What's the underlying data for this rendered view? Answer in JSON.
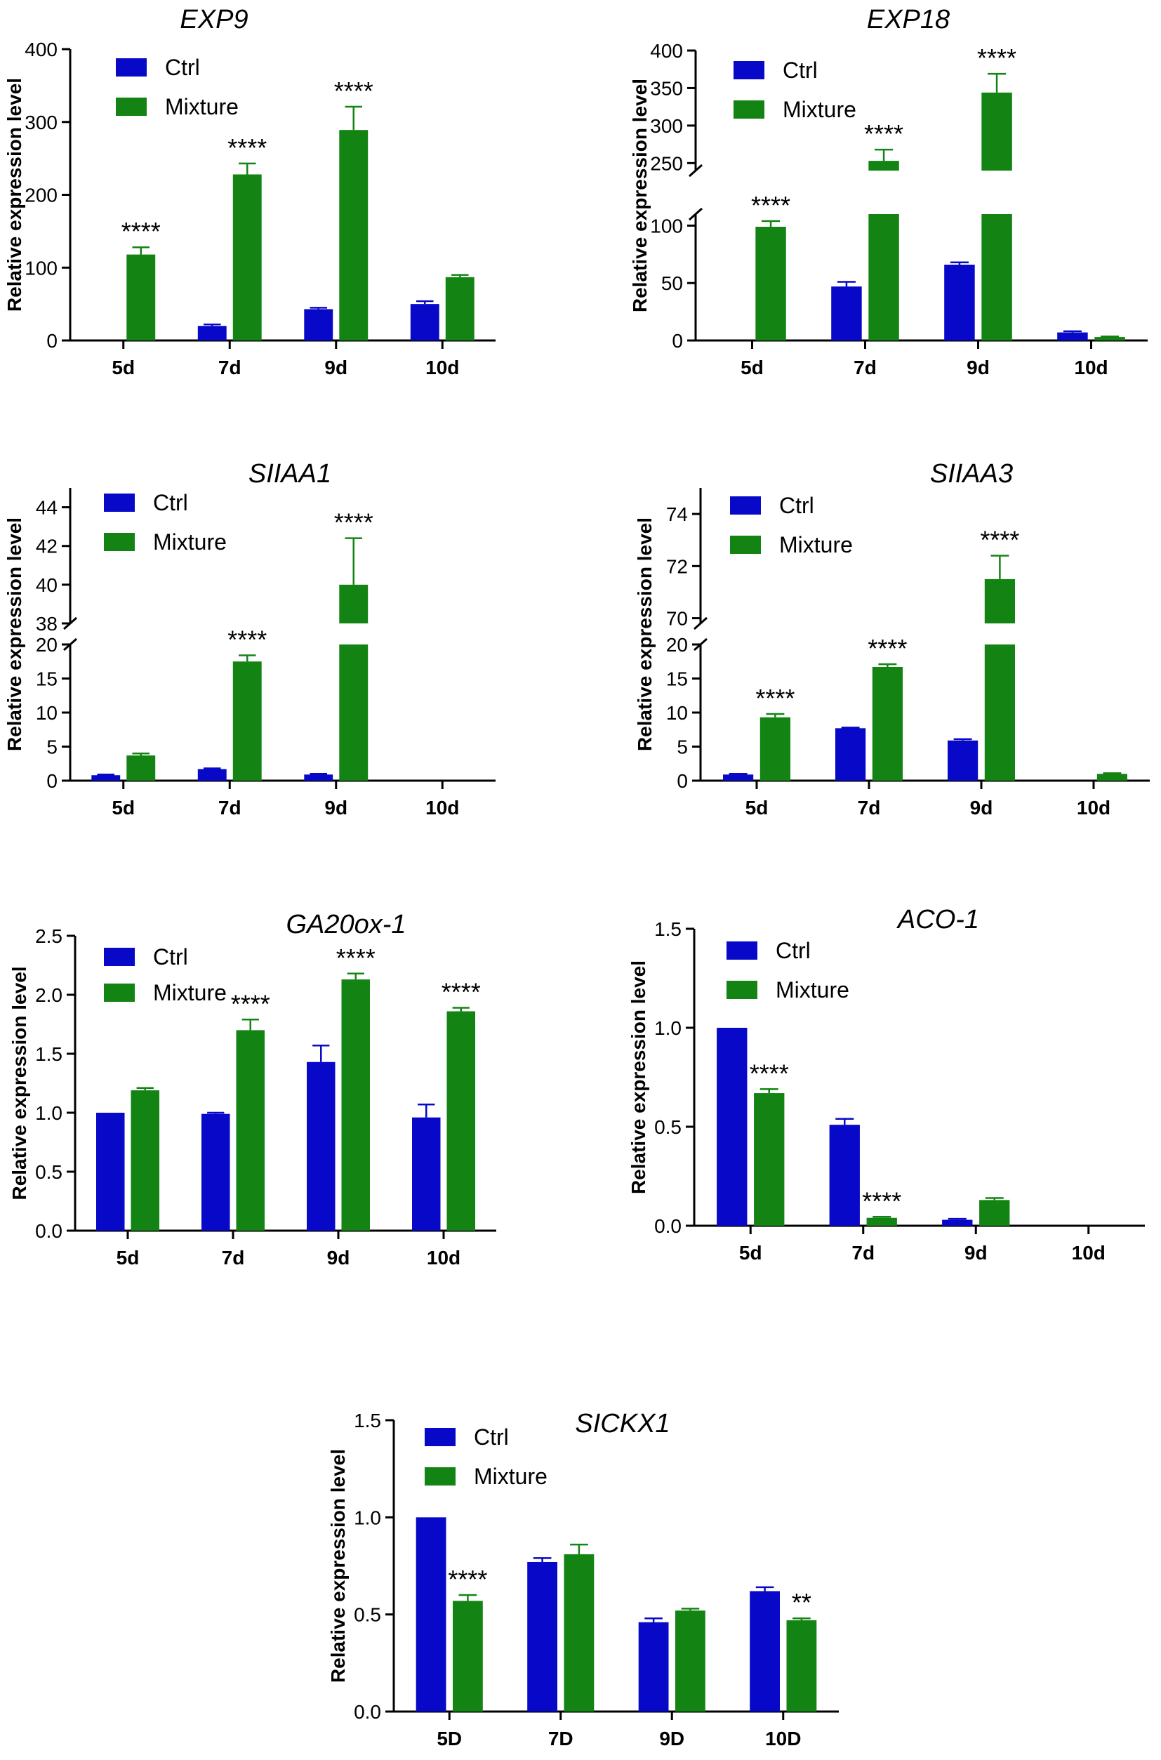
{
  "colors": {
    "ctrl": "#0808c8",
    "mixture": "#138413",
    "axis": "#000000"
  },
  "chart_data": [
    {
      "type": "bar",
      "title": "EXP9",
      "ylabel": "Relative expression level",
      "xlabel": "",
      "categories": [
        "5d",
        "7d",
        "9d",
        "10d"
      ],
      "ylim": [
        0,
        400
      ],
      "yticks": [
        "0",
        "100",
        "200",
        "300",
        "400"
      ],
      "yticks_values": [
        0,
        100,
        200,
        300,
        400
      ],
      "series": [
        {
          "name": "Ctrl",
          "values": [
            0,
            20,
            43,
            50
          ],
          "errors": [
            0,
            2,
            2,
            4
          ]
        },
        {
          "name": "Mixture",
          "values": [
            118,
            228,
            289,
            87
          ],
          "errors": [
            10,
            15,
            32,
            3
          ]
        }
      ],
      "significance": [
        "****",
        "****",
        "****",
        ""
      ]
    },
    {
      "type": "bar",
      "title": "EXP18",
      "ylabel": "Relative expression level",
      "xlabel": "",
      "categories": [
        "5d",
        "7d",
        "9d",
        "10d"
      ],
      "ylim": [
        0,
        400
      ],
      "axis_break": {
        "lower": [
          0,
          110
        ],
        "upper": [
          240,
          400
        ]
      },
      "yticks": [
        "0",
        "50",
        "100",
        "250",
        "300",
        "350",
        "400"
      ],
      "yticks_values": [
        0,
        50,
        100,
        250,
        300,
        350,
        400
      ],
      "series": [
        {
          "name": "Ctrl",
          "values": [
            0,
            47,
            66,
            7
          ],
          "errors": [
            0,
            4,
            2,
            1
          ]
        },
        {
          "name": "Mixture",
          "values": [
            99,
            253,
            344,
            3
          ],
          "errors": [
            5,
            15,
            25,
            0.5
          ]
        }
      ],
      "significance": [
        "****",
        "****",
        "****",
        ""
      ]
    },
    {
      "type": "bar",
      "title": "SIIAA1",
      "ylabel": "Relative expression level",
      "xlabel": "",
      "categories": [
        "5d",
        "7d",
        "9d",
        "10d"
      ],
      "ylim": [
        0,
        45
      ],
      "axis_break": {
        "lower": [
          0,
          20
        ],
        "upper": [
          38,
          45
        ]
      },
      "yticks": [
        "0",
        "5",
        "10",
        "15",
        "20",
        "38",
        "40",
        "42",
        "44"
      ],
      "yticks_values": [
        0,
        5,
        10,
        15,
        20,
        38,
        40,
        42,
        44
      ],
      "series": [
        {
          "name": "Ctrl",
          "values": [
            0.8,
            1.7,
            0.9,
            0
          ],
          "errors": [
            0.1,
            0.1,
            0.1,
            0
          ]
        },
        {
          "name": "Mixture",
          "values": [
            3.7,
            17.5,
            40.0,
            0
          ],
          "errors": [
            0.3,
            0.9,
            2.4,
            0
          ]
        }
      ],
      "significance": [
        "",
        "****",
        "****",
        ""
      ]
    },
    {
      "type": "bar",
      "title": "SIIAA3",
      "ylabel": "Relative expression level",
      "xlabel": "",
      "categories": [
        "5d",
        "7d",
        "9d",
        "10d"
      ],
      "ylim": [
        0,
        75
      ],
      "axis_break": {
        "lower": [
          0,
          20
        ],
        "upper": [
          69.8,
          75
        ]
      },
      "yticks": [
        "0",
        "5",
        "10",
        "15",
        "20",
        "70",
        "72",
        "74"
      ],
      "yticks_values": [
        0,
        5,
        10,
        15,
        20,
        70,
        72,
        74
      ],
      "series": [
        {
          "name": "Ctrl",
          "values": [
            0.9,
            7.7,
            5.9,
            0
          ],
          "errors": [
            0.1,
            0.1,
            0.2,
            0
          ]
        },
        {
          "name": "Mixture",
          "values": [
            9.3,
            16.7,
            71.5,
            1.0
          ],
          "errors": [
            0.5,
            0.4,
            0.9,
            0.1
          ]
        }
      ],
      "significance": [
        "****",
        "****",
        "****",
        ""
      ]
    },
    {
      "type": "bar",
      "title": "GA20ox-1",
      "ylabel": "Relative expression level",
      "xlabel": "",
      "categories": [
        "5d",
        "7d",
        "9d",
        "10d"
      ],
      "ylim": [
        0,
        2.5
      ],
      "yticks": [
        "0.0",
        "0.5",
        "1.0",
        "1.5",
        "2.0",
        "2.5"
      ],
      "yticks_values": [
        0,
        0.5,
        1.0,
        1.5,
        2.0,
        2.5
      ],
      "series": [
        {
          "name": "Ctrl",
          "values": [
            1.0,
            0.99,
            1.43,
            0.96
          ],
          "errors": [
            0,
            0.01,
            0.14,
            0.11
          ]
        },
        {
          "name": "Mixture",
          "values": [
            1.19,
            1.7,
            2.13,
            1.86
          ],
          "errors": [
            0.02,
            0.09,
            0.05,
            0.03
          ]
        }
      ],
      "significance": [
        "",
        "****",
        "****",
        "****"
      ]
    },
    {
      "type": "bar",
      "title": "ACO-1",
      "ylabel": "Relative expression level",
      "xlabel": "",
      "categories": [
        "5d",
        "7d",
        "9d",
        "10d"
      ],
      "ylim": [
        0,
        1.5
      ],
      "yticks": [
        "0.0",
        "0.5",
        "1.0",
        "1.5"
      ],
      "yticks_values": [
        0,
        0.5,
        1.0,
        1.5
      ],
      "series": [
        {
          "name": "Ctrl",
          "values": [
            1.0,
            0.51,
            0.03,
            0
          ],
          "errors": [
            0,
            0.03,
            0.005,
            0
          ]
        },
        {
          "name": "Mixture",
          "values": [
            0.67,
            0.04,
            0.13,
            0
          ],
          "errors": [
            0.02,
            0.005,
            0.01,
            0
          ]
        }
      ],
      "significance": [
        "****",
        "****",
        "",
        ""
      ]
    },
    {
      "type": "bar",
      "title": "SICKX1",
      "ylabel": "Relative expression level",
      "xlabel": "",
      "categories": [
        "5D",
        "7D",
        "9D",
        "10D"
      ],
      "ylim": [
        0,
        1.5
      ],
      "yticks": [
        "0.0",
        "0.5",
        "1.0",
        "1.5"
      ],
      "yticks_values": [
        0,
        0.5,
        1.0,
        1.5
      ],
      "series": [
        {
          "name": "Ctrl",
          "values": [
            1.0,
            0.77,
            0.46,
            0.62
          ],
          "errors": [
            0,
            0.02,
            0.02,
            0.02
          ]
        },
        {
          "name": "Mixture",
          "values": [
            0.57,
            0.81,
            0.52,
            0.47
          ],
          "errors": [
            0.03,
            0.05,
            0.01,
            0.01
          ]
        }
      ],
      "significance": [
        "****",
        "",
        "",
        "**"
      ]
    }
  ]
}
